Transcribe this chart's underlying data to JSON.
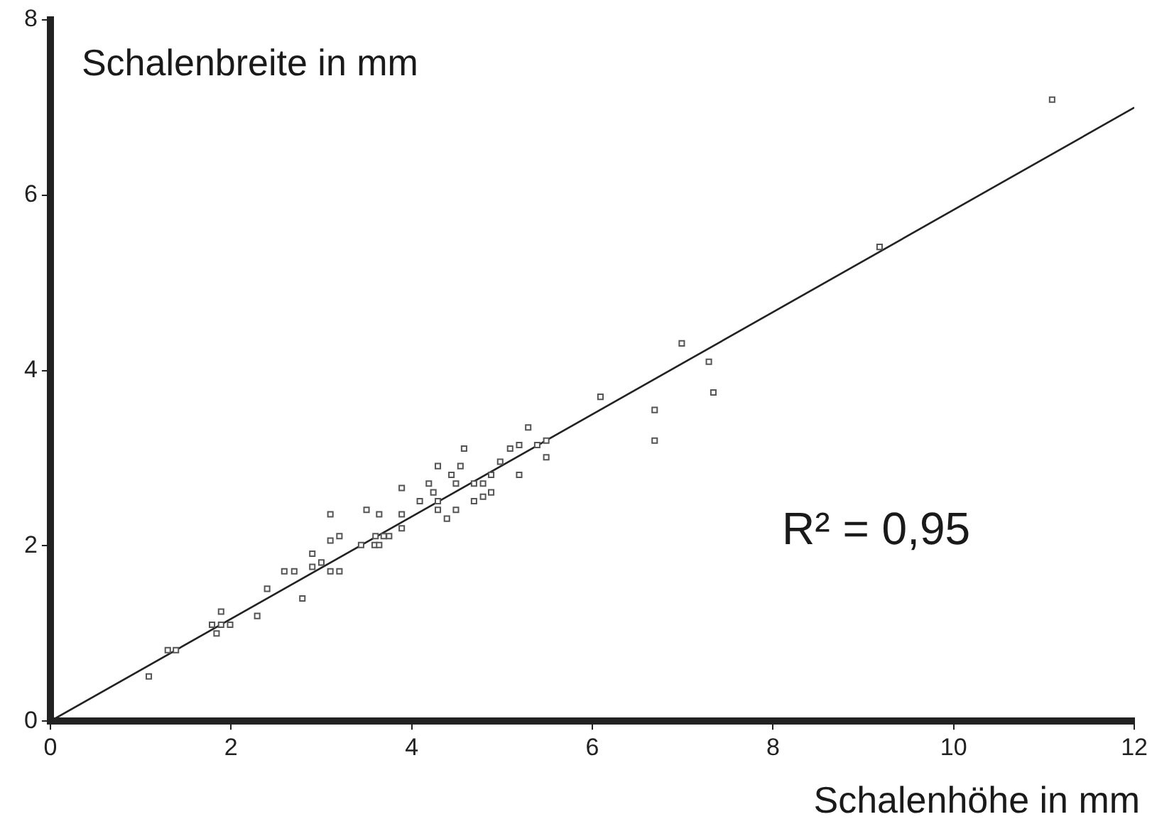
{
  "chart_data": {
    "type": "scatter",
    "xlabel": "Schalenhöhe in mm",
    "ylabel": "Schalenbreite in mm",
    "annotations": [
      "R² = 0,95"
    ],
    "xlim": [
      0,
      12
    ],
    "xticks": [
      0,
      2,
      4,
      6,
      8,
      10,
      12
    ],
    "ylim": [
      0,
      8
    ],
    "yticks": [
      0,
      2,
      4,
      6,
      8
    ],
    "grid": false,
    "legend": false,
    "series": [
      {
        "marker": "square",
        "color": "#555555",
        "x": [
          1.09,
          1.3,
          1.39,
          1.79,
          1.89,
          1.99,
          1.84,
          1.89,
          2.29,
          2.4,
          2.59,
          2.7,
          2.79,
          2.9,
          2.9,
          3.0,
          3.1,
          3.2,
          3.1,
          3.2,
          3.1,
          3.44,
          3.5,
          3.59,
          3.64,
          3.64,
          3.6,
          3.69,
          3.75,
          3.89,
          3.89,
          3.89,
          4.09,
          4.19,
          4.24,
          4.29,
          4.29,
          4.29,
          4.39,
          4.44,
          4.49,
          4.49,
          4.54,
          4.58,
          4.69,
          4.69,
          4.79,
          4.79,
          4.88,
          4.88,
          4.98,
          5.09,
          5.19,
          5.19,
          5.29,
          5.39,
          5.49,
          5.49,
          6.09,
          6.69,
          6.69,
          6.99,
          7.29,
          7.34,
          9.18,
          11.09
        ],
        "values": [
          0.51,
          0.81,
          0.81,
          1.1,
          1.1,
          1.1,
          1.0,
          1.25,
          1.2,
          1.51,
          1.71,
          1.71,
          1.4,
          1.91,
          1.76,
          1.81,
          1.71,
          1.71,
          2.06,
          2.11,
          2.36,
          2.01,
          2.41,
          2.01,
          2.01,
          2.36,
          2.11,
          2.11,
          2.11,
          2.2,
          2.36,
          2.66,
          2.51,
          2.71,
          2.61,
          2.51,
          2.41,
          2.91,
          2.31,
          2.81,
          2.41,
          2.71,
          2.91,
          3.11,
          2.51,
          2.71,
          2.71,
          2.56,
          2.61,
          2.81,
          2.96,
          3.11,
          3.15,
          2.81,
          3.35,
          3.15,
          3.2,
          3.01,
          3.7,
          3.55,
          3.2,
          4.31,
          4.1,
          3.75,
          5.41,
          7.09
        ]
      },
      {
        "type": "line",
        "marker": "none",
        "color": "#222222",
        "x": [
          0,
          12
        ],
        "values": [
          0,
          7
        ]
      }
    ]
  }
}
